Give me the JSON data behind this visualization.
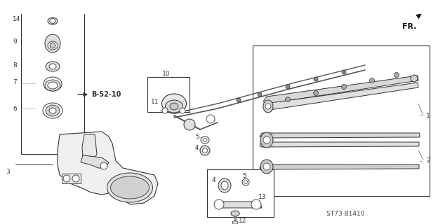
{
  "bg_color": "#ffffff",
  "line_color": "#333333",
  "part_code": "ST73 B1410",
  "fig_width": 6.24,
  "fig_height": 3.2,
  "dpi": 100
}
